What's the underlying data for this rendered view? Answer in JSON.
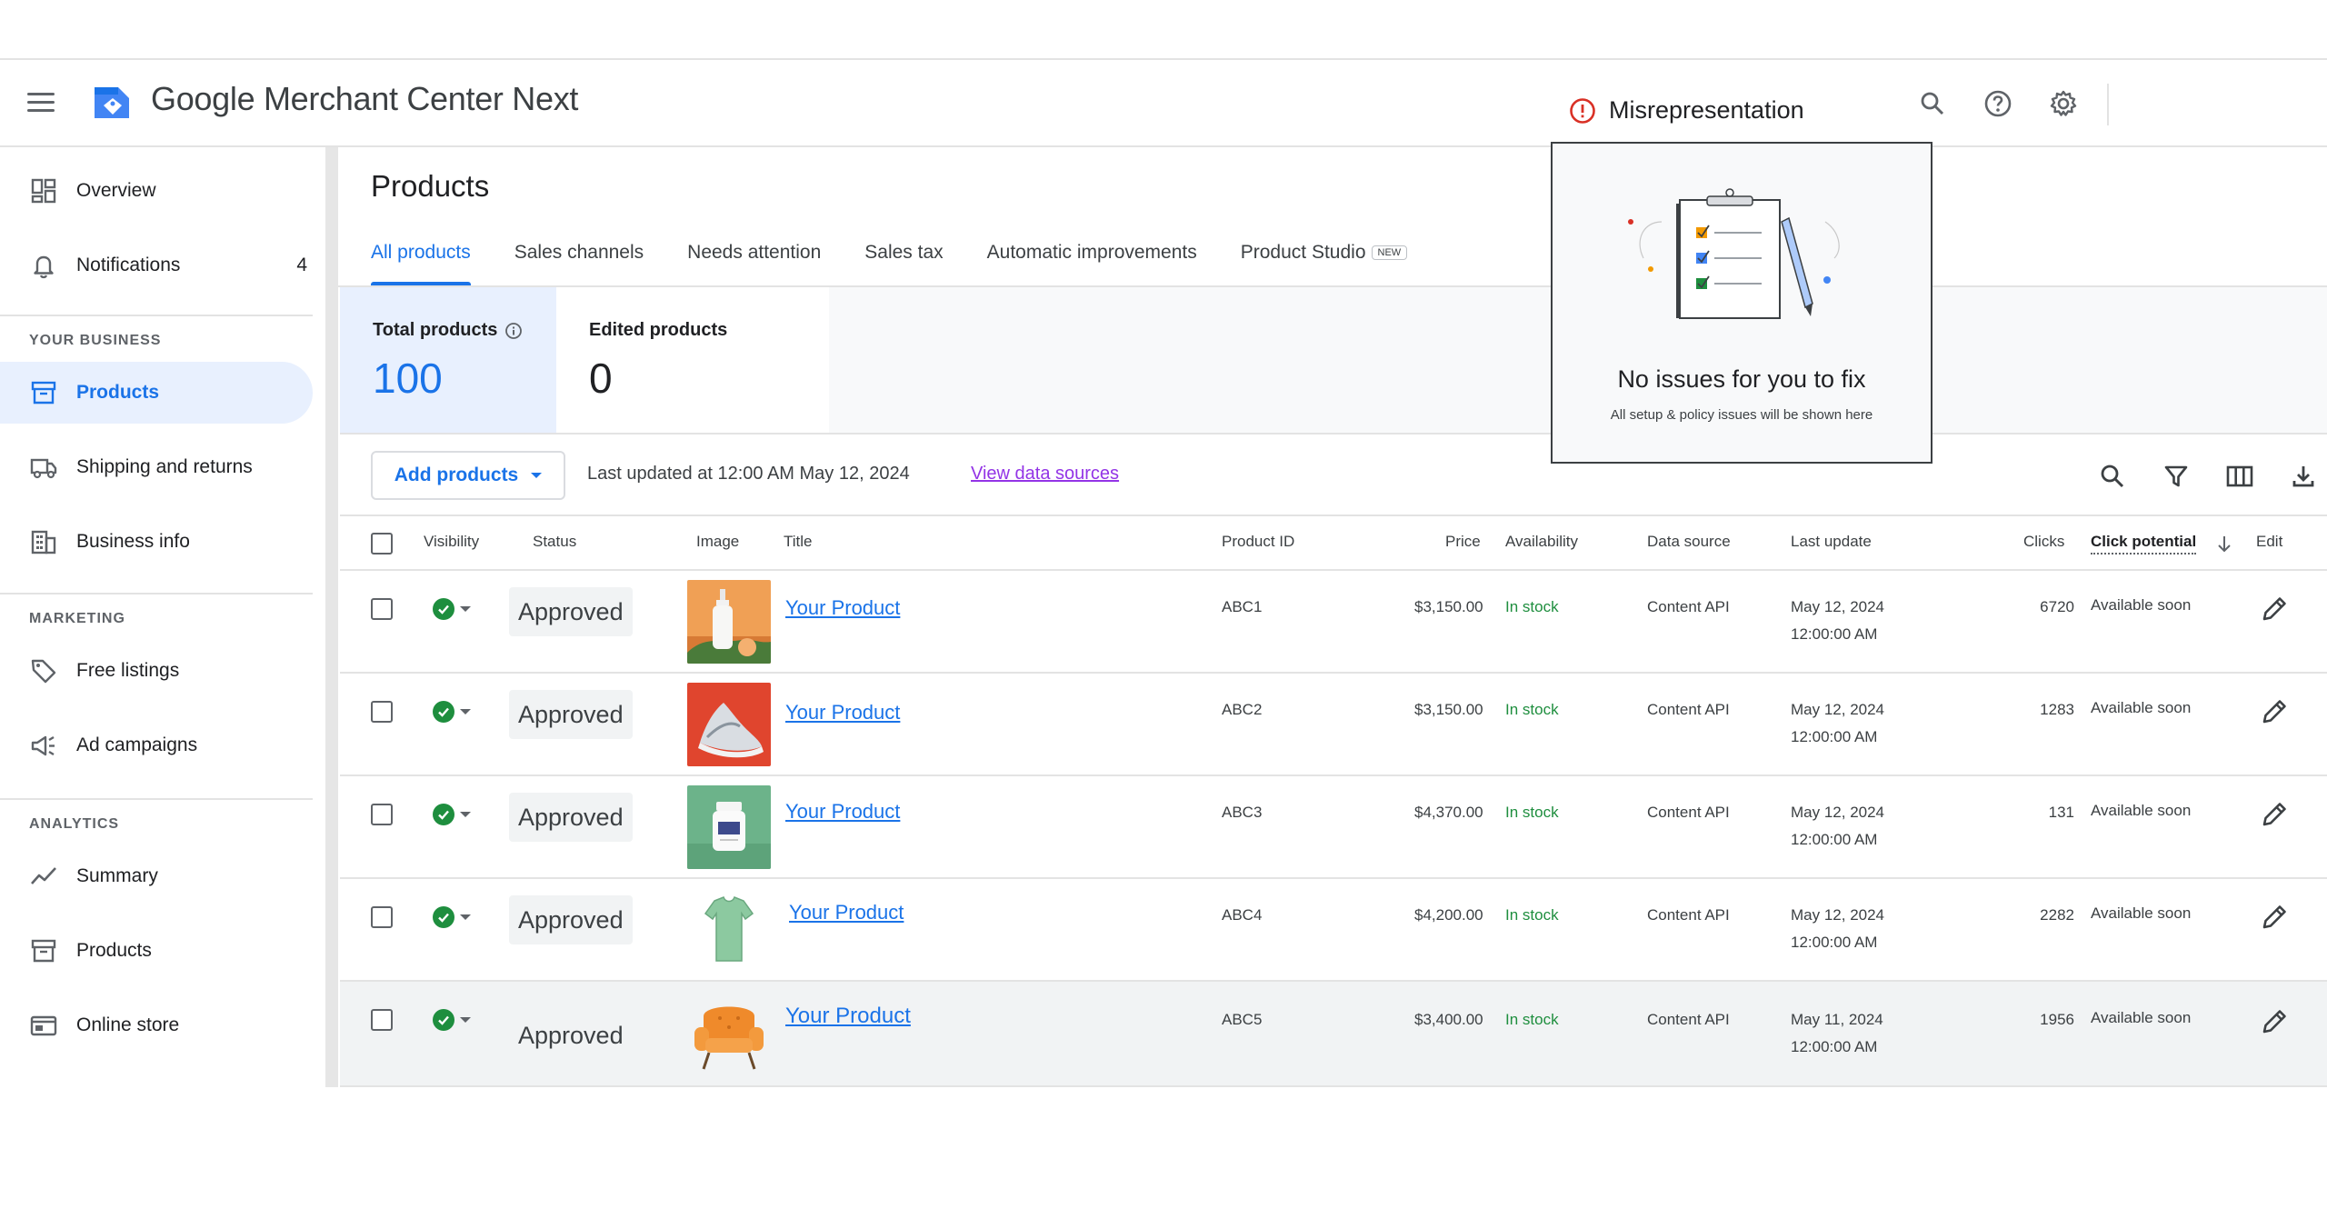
{
  "app": {
    "title": "Google Merchant Center Next"
  },
  "header": {
    "alert_label": "Misrepresentation",
    "icons": [
      "search-icon",
      "help-icon",
      "settings-icon"
    ]
  },
  "sidebar": {
    "items_top": [
      {
        "label": "Overview",
        "icon": "overview-icon"
      },
      {
        "label": "Notifications",
        "icon": "bell-icon",
        "count": "4"
      }
    ],
    "section_business": "YOUR BUSINESS",
    "items_business": [
      {
        "label": "Products",
        "icon": "products-icon",
        "active": true
      },
      {
        "label": "Shipping and returns",
        "icon": "truck-icon"
      },
      {
        "label": "Business info",
        "icon": "building-icon"
      }
    ],
    "section_marketing": "MARKETING",
    "items_marketing": [
      {
        "label": "Free listings",
        "icon": "tag-icon"
      },
      {
        "label": "Ad campaigns",
        "icon": "megaphone-icon"
      }
    ],
    "section_analytics": "ANALYTICS",
    "items_analytics": [
      {
        "label": "Summary",
        "icon": "trend-icon"
      },
      {
        "label": "Products",
        "icon": "products-icon"
      },
      {
        "label": "Online store",
        "icon": "store-icon"
      }
    ]
  },
  "main": {
    "title": "Products",
    "tabs": [
      {
        "label": "All products",
        "active": true
      },
      {
        "label": "Sales channels"
      },
      {
        "label": "Needs attention"
      },
      {
        "label": "Sales tax"
      },
      {
        "label": "Automatic improvements"
      },
      {
        "label": "Product Studio",
        "badge": "NEW"
      }
    ],
    "stats": {
      "total_label": "Total products",
      "total_value": "100",
      "edited_label": "Edited products",
      "edited_value": "0"
    },
    "toolbar": {
      "add_label": "Add products",
      "last_updated": "Last updated at 12:00 AM May 12, 2024",
      "view_link": "View data sources",
      "icons": [
        "search-icon",
        "filter-icon",
        "columns-icon",
        "download-icon"
      ]
    },
    "table": {
      "columns": {
        "visibility": "Visibility",
        "status": "Status",
        "image": "Image",
        "title": "Title",
        "product_id": "Product ID",
        "price": "Price",
        "availability": "Availability",
        "data_source": "Data source",
        "last_update": "Last update",
        "clicks": "Clicks",
        "click_potential": "Click potential",
        "edit": "Edit"
      },
      "rows": [
        {
          "status": "Approved",
          "title": "Your Product",
          "product_id": "ABC1",
          "price": "$3,150.00",
          "availability": "In stock",
          "data_source": "Content API",
          "date": "May 12, 2024",
          "time": "12:00:00 AM",
          "clicks": "6720",
          "click_potential": "Available soon",
          "image": "serum-bottle"
        },
        {
          "status": "Approved",
          "title": "Your Product",
          "product_id": "ABC2",
          "price": "$3,150.00",
          "availability": "In stock",
          "data_source": "Content API",
          "date": "May 12, 2024",
          "time": "12:00:00 AM",
          "clicks": "1283",
          "click_potential": "Available soon",
          "image": "sneaker"
        },
        {
          "status": "Approved",
          "title": "Your Product",
          "product_id": "ABC3",
          "price": "$4,370.00",
          "availability": "In stock",
          "data_source": "Content API",
          "date": "May 12, 2024",
          "time": "12:00:00 AM",
          "clicks": "131",
          "click_potential": "Available soon",
          "image": "supplement-jar"
        },
        {
          "status": "Approved",
          "title": "Your Product",
          "product_id": "ABC4",
          "price": "$4,200.00",
          "availability": "In stock",
          "data_source": "Content API",
          "date": "May 12, 2024",
          "time": "12:00:00 AM",
          "clicks": "2282",
          "click_potential": "Available soon",
          "image": "t-shirt"
        },
        {
          "status": "Approved",
          "title": "Your Product",
          "product_id": "ABC5",
          "price": "$3,400.00",
          "availability": "In stock",
          "data_source": "Content API",
          "date": "May 11, 2024",
          "time": "12:00:00 AM",
          "clicks": "1956",
          "click_potential": "Available soon",
          "image": "armchair"
        }
      ]
    }
  },
  "popup": {
    "title": "No issues for you to fix",
    "subtitle": "All setup & policy issues will be shown here"
  },
  "colors": {
    "accent": "#1a73e8",
    "success": "#1e8e3e",
    "error": "#d93025",
    "link_visited": "#9334e6"
  }
}
